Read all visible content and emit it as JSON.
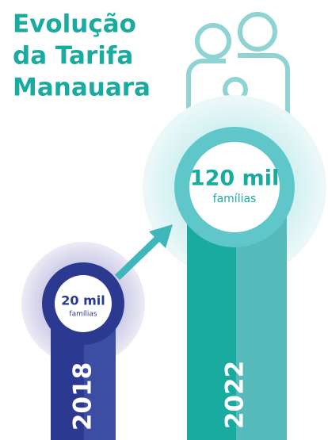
{
  "title": {
    "lines": [
      "Evolução",
      "da Tarifa",
      "Manauara"
    ]
  },
  "items": [
    {
      "amount": "20 mil",
      "unit": "famílias",
      "year": "2018"
    },
    {
      "amount": "120 mil",
      "unit": "famílias",
      "year": "2022"
    }
  ]
}
